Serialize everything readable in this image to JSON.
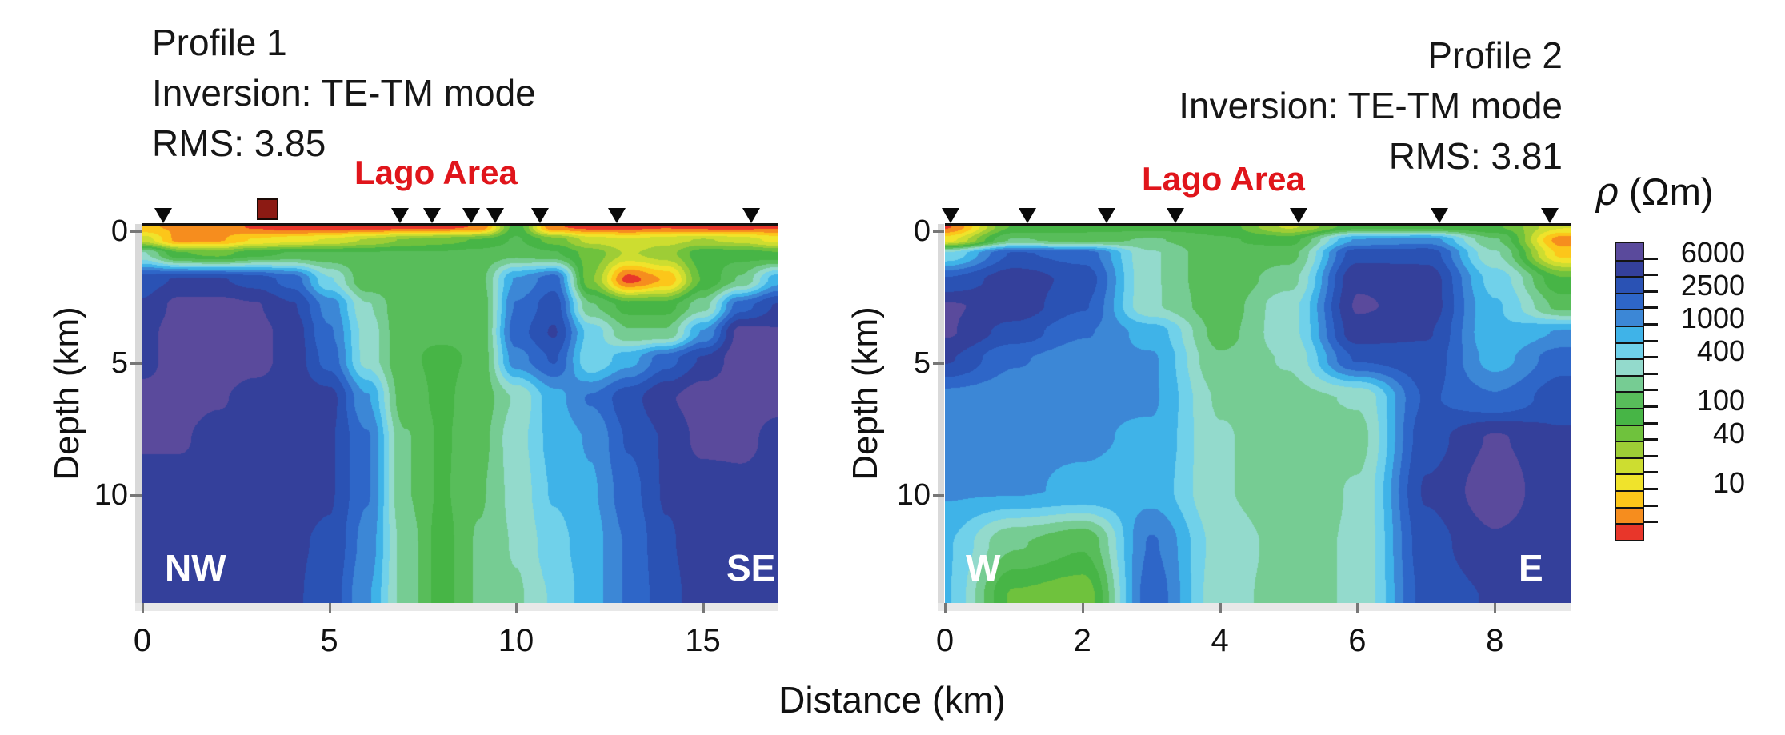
{
  "chart_data": {
    "type": "heatmap",
    "subtype": "2D magnetotelluric resistivity inversion cross-sections (contour bands)",
    "x_label": "Distance (km)",
    "y_label": "Depth (km)",
    "colorbar": {
      "title_symbol": "ρ",
      "title_unit": " (Ωm)",
      "units": "ohm-m",
      "scale": "logarithmic, discrete bands",
      "n_cells": 18,
      "log10_value_at_top": 3.978,
      "log10_step_per_cell": 0.2,
      "tick_labels": [
        "6000",
        "2500",
        "1000",
        "400",
        "100",
        "40",
        "10"
      ],
      "tick_cell_boundary_index": [
        1,
        3,
        5,
        7,
        10,
        12,
        15
      ],
      "palette_top_to_bottom": [
        "#5a4a9c",
        "#34409b",
        "#2a52b4",
        "#2e66c8",
        "#3c87d6",
        "#3fb3e8",
        "#70d1ea",
        "#93dacc",
        "#76cc93",
        "#58bd5a",
        "#47b546",
        "#6fc23d",
        "#9ecd36",
        "#cddd30",
        "#f0e32b",
        "#fcc61a",
        "#f68d1e",
        "#e8362a"
      ]
    },
    "profiles": [
      {
        "name": "Profile 1",
        "header_lines": [
          "Profile 1",
          "Inversion: TE-TM mode",
          "RMS: 3.85"
        ],
        "area_label": "Lago Area",
        "end_labels": {
          "left": "NW",
          "right": "SE"
        },
        "x_ticks_km": [
          0,
          5,
          10,
          15
        ],
        "y_ticks_km": [
          0,
          5,
          10
        ],
        "x_range_km": [
          0,
          17
        ],
        "depth_range_km": [
          0,
          14.3
        ],
        "station_markers_km": [
          0.55,
          6.9,
          7.75,
          8.8,
          9.45,
          10.65,
          12.7,
          16.3
        ],
        "square_marker_km": 3.35,
        "grid": {
          "x_step_km": 1,
          "depths_km": [
            0,
            0.5,
            1,
            2,
            3,
            4,
            5,
            6.5,
            8,
            10,
            12,
            14
          ],
          "log10_resistivity": [
            [
              0.8,
              0.75,
              0.7,
              0.55,
              0.45,
              0.45,
              0.45,
              0.5,
              0.5,
              0.6,
              1.9,
              0.6,
              0.5,
              0.5,
              0.55,
              0.5,
              0.5,
              0.55
            ],
            [
              1.3,
              0.7,
              0.75,
              1.0,
              1.1,
              1.2,
              1.4,
              1.6,
              1.7,
              1.8,
              2.0,
              1.7,
              1.3,
              1.2,
              1.3,
              1.4,
              1.3,
              1.1
            ],
            [
              2.4,
              1.8,
              1.7,
              1.9,
              2.0,
              2.0,
              2.0,
              2.0,
              2.0,
              2.05,
              2.1,
              2.0,
              1.7,
              1.35,
              1.5,
              1.9,
              1.9,
              1.8
            ],
            [
              3.5,
              3.6,
              3.6,
              3.5,
              3.3,
              2.6,
              2.0,
              2.0,
              2.0,
              2.1,
              3.0,
              3.3,
              1.6,
              0.5,
              0.8,
              1.8,
              2.2,
              2.9
            ],
            [
              3.6,
              3.85,
              3.85,
              3.8,
              3.6,
              3.1,
              2.4,
              2.0,
              2.0,
              2.0,
              3.2,
              3.5,
              2.2,
              1.9,
              1.9,
              2.3,
              3.3,
              3.6
            ],
            [
              3.7,
              3.9,
              3.9,
              3.85,
              3.7,
              3.2,
              2.5,
              2.0,
              2.0,
              2.0,
              3.3,
              3.6,
              2.7,
              2.2,
              2.2,
              3.0,
              3.85,
              3.8
            ],
            [
              3.7,
              3.9,
              3.9,
              3.85,
              3.7,
              3.3,
              2.5,
              2.0,
              1.95,
              2.0,
              3.1,
              3.4,
              2.6,
              2.9,
              3.3,
              3.6,
              3.9,
              3.85
            ],
            [
              3.85,
              3.85,
              3.8,
              3.7,
              3.7,
              3.65,
              3.0,
              2.05,
              1.95,
              2.05,
              2.4,
              2.9,
              3.2,
              3.5,
              3.75,
              3.9,
              3.9,
              3.85
            ],
            [
              3.8,
              3.8,
              3.7,
              3.65,
              3.65,
              3.6,
              3.2,
              2.2,
              1.95,
              2.1,
              2.5,
              2.85,
              3.0,
              3.4,
              3.6,
              3.85,
              3.85,
              3.7
            ],
            [
              3.7,
              3.7,
              3.65,
              3.65,
              3.65,
              3.6,
              3.2,
              2.2,
              1.95,
              2.15,
              2.45,
              2.8,
              2.95,
              3.3,
              3.6,
              3.65,
              3.7,
              3.7
            ],
            [
              3.7,
              3.7,
              3.65,
              3.65,
              3.6,
              3.55,
              3.1,
              2.3,
              1.9,
              2.2,
              2.4,
              2.7,
              2.9,
              3.2,
              3.55,
              3.7,
              3.75,
              3.7
            ],
            [
              3.7,
              3.7,
              3.65,
              3.6,
              3.6,
              3.5,
              3.0,
              2.3,
              1.9,
              2.2,
              2.35,
              2.6,
              2.9,
              3.2,
              3.5,
              3.7,
              3.75,
              3.7
            ]
          ]
        }
      },
      {
        "name": "Profile 2",
        "header_lines": [
          "Profile 2",
          "Inversion: TE-TM mode",
          "RMS: 3.81"
        ],
        "area_label": "Lago Area",
        "end_labels": {
          "left": "W",
          "right": "E"
        },
        "x_ticks_km": [
          0,
          2,
          4,
          6,
          8
        ],
        "y_ticks_km": [
          0,
          5,
          10
        ],
        "x_range_km": [
          0,
          9.1
        ],
        "depth_range_km": [
          0,
          14.3
        ],
        "station_markers_km": [
          0.08,
          1.2,
          2.35,
          3.35,
          5.15,
          7.2,
          8.8
        ],
        "square_marker_km": null,
        "grid": {
          "x_step_km": 1,
          "depths_km": [
            0,
            0.5,
            1,
            2,
            3,
            4,
            5,
            6.5,
            8,
            10,
            12,
            14
          ],
          "log10_resistivity": [
            [
              0.55,
              1.8,
              1.9,
              1.9,
              1.9,
              1.35,
              1.9,
              1.9,
              1.8,
              1.2
            ],
            [
              1.1,
              2.2,
              2.1,
              2.2,
              2.0,
              1.9,
              3.0,
              3.1,
              2.2,
              0.65
            ],
            [
              2.6,
              3.4,
              3.3,
              2.4,
              2.0,
              2.1,
              3.5,
              3.5,
              2.4,
              0.9
            ],
            [
              3.4,
              3.7,
              3.5,
              2.4,
              2.0,
              2.3,
              3.75,
              3.7,
              2.7,
              1.8
            ],
            [
              3.8,
              3.7,
              3.4,
              2.4,
              2.05,
              2.5,
              3.8,
              3.7,
              2.8,
              2.1
            ],
            [
              3.8,
              3.5,
              3.2,
              2.9,
              2.1,
              2.5,
              3.7,
              3.6,
              2.8,
              3.0
            ],
            [
              3.6,
              3.2,
              3.05,
              3.0,
              2.2,
              2.4,
              3.4,
              3.5,
              2.9,
              3.3
            ],
            [
              3.1,
              3.05,
              3.0,
              3.0,
              2.35,
              2.3,
              2.4,
              3.4,
              3.2,
              3.5
            ],
            [
              3.0,
              3.0,
              3.0,
              2.95,
              2.4,
              2.2,
              2.3,
              3.5,
              3.8,
              3.6
            ],
            [
              3.0,
              3.0,
              2.95,
              2.9,
              2.4,
              2.2,
              2.4,
              3.6,
              3.9,
              3.6
            ],
            [
              2.8,
              2.2,
              2.0,
              3.2,
              2.5,
              2.3,
              2.4,
              3.5,
              3.75,
              3.6
            ],
            [
              2.8,
              1.75,
              1.65,
              3.3,
              2.45,
              2.3,
              2.4,
              3.45,
              3.6,
              3.6
            ]
          ]
        }
      }
    ]
  }
}
